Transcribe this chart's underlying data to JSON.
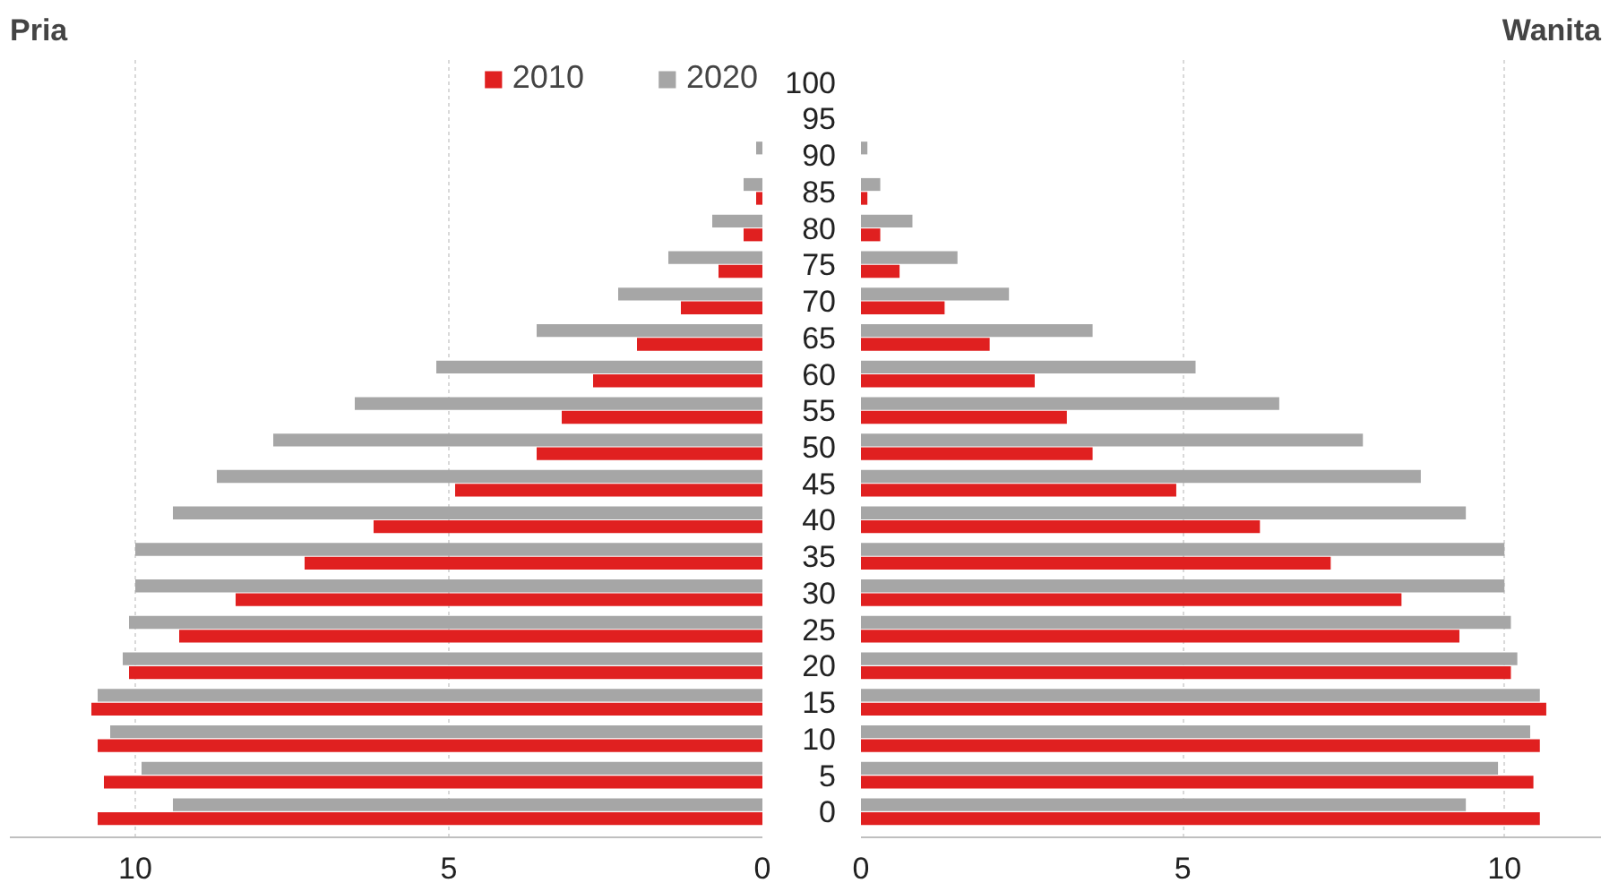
{
  "chart_data": [
    {
      "type": "bar",
      "orientation": "horizontal",
      "title": "Pria",
      "categories": [
        "100",
        "95",
        "90",
        "85",
        "80",
        "75",
        "70",
        "65",
        "60",
        "55",
        "50",
        "45",
        "40",
        "35",
        "30",
        "25",
        "20",
        "15",
        "10",
        "5",
        "0"
      ],
      "series": [
        {
          "name": "2010",
          "color": "#e02020",
          "values": [
            0,
            0,
            0,
            0.1,
            0.3,
            0.7,
            1.3,
            2.0,
            2.7,
            3.2,
            3.6,
            4.9,
            6.2,
            7.3,
            8.4,
            9.3,
            10.1,
            10.7,
            10.6,
            10.5,
            10.6
          ]
        },
        {
          "name": "2020",
          "color": "#a6a6a6",
          "values": [
            0,
            0,
            0.1,
            0.3,
            0.8,
            1.5,
            2.3,
            3.6,
            5.2,
            6.5,
            7.8,
            8.7,
            9.4,
            10.0,
            10.0,
            10.1,
            10.2,
            10.6,
            10.4,
            9.9,
            9.4
          ]
        }
      ],
      "xlim": [
        12,
        0
      ],
      "xticks": [
        10,
        5,
        0
      ],
      "grid": "x",
      "legend": "top right",
      "tick_labels": "x"
    },
    {
      "type": "bar",
      "orientation": "horizontal",
      "title": "Wanita",
      "categories": [
        "100",
        "95",
        "90",
        "85",
        "80",
        "75",
        "70",
        "65",
        "60",
        "55",
        "50",
        "45",
        "40",
        "35",
        "30",
        "25",
        "20",
        "15",
        "10",
        "5",
        "0"
      ],
      "series": [
        {
          "color": "#e02020",
          "values": [
            0,
            0,
            0,
            0.1,
            0.3,
            0.6,
            1.3,
            2.0,
            2.7,
            3.2,
            3.6,
            4.9,
            6.2,
            7.3,
            8.4,
            9.3,
            10.1,
            10.65,
            10.55,
            10.45,
            10.55
          ]
        },
        {
          "color": "#a6a6a6",
          "values": [
            0,
            0,
            0.1,
            0.3,
            0.8,
            1.5,
            2.3,
            3.6,
            5.2,
            6.5,
            7.8,
            8.7,
            9.4,
            10.0,
            10.0,
            10.1,
            10.2,
            10.55,
            10.4,
            9.9,
            9.4
          ]
        }
      ],
      "xlim": [
        0,
        11.5
      ],
      "xticks": [
        0,
        5,
        10
      ],
      "grid": "x"
    }
  ]
}
